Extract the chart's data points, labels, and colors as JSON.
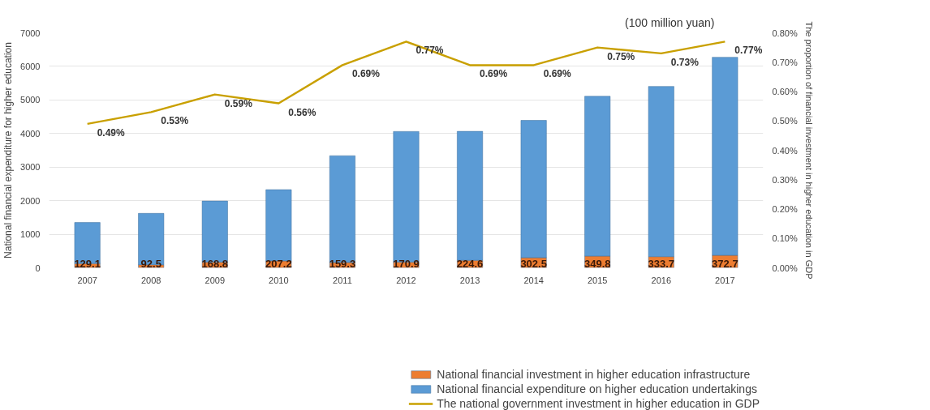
{
  "chart_data": {
    "type": "bar",
    "stacked": true,
    "categories": [
      "2007",
      "2008",
      "2009",
      "2010",
      "2011",
      "2012",
      "2013",
      "2014",
      "2015",
      "2016",
      "2017"
    ],
    "series": [
      {
        "name": "National financial investment in higher education infrastructure",
        "color": "#ed7d31",
        "values": [
          129.1,
          92.5,
          168.8,
          207.2,
          159.3,
          170.9,
          224.6,
          302.5,
          349.8,
          333.7,
          372.7
        ],
        "value_labels": [
          "129.1",
          "92.5",
          "168.8",
          "207.2",
          "159.3",
          "170.9",
          "224.6",
          "302.5",
          "349.8",
          "333.7",
          "372.7"
        ]
      },
      {
        "name": "National financial expenditure on higher education undertakings",
        "color": "#5b9bd5",
        "values": [
          1220,
          1530,
          1820,
          2120,
          3180,
          3890,
          3840,
          4090,
          4760,
          5070,
          5900
        ]
      },
      {
        "name": "The national government investment in higher education in GDP",
        "type": "line",
        "axis": "y2",
        "color": "#c9a000",
        "values": [
          0.49,
          0.53,
          0.59,
          0.56,
          0.69,
          0.77,
          0.69,
          0.69,
          0.75,
          0.73,
          0.77
        ],
        "value_labels": [
          "0.49%",
          "0.53%",
          "0.59%",
          "0.56%",
          "0.69%",
          "0.77%",
          "0.69%",
          "0.69%",
          "0.75%",
          "0.73%",
          "0.77%"
        ]
      }
    ],
    "ylabel": "National financial expenditure for higher education",
    "y2label": "The proportion of financial investment in higher education in GDP",
    "annotations": [
      "(100 million yuan)"
    ],
    "ylim": [
      0,
      7000
    ],
    "yticks": [
      0,
      1000,
      2000,
      3000,
      4000,
      5000,
      6000,
      7000
    ],
    "y2lim": [
      0,
      0.8
    ],
    "y2ticks": [
      {
        "value": 0,
        "label": "0.00%"
      },
      {
        "value": 0.1,
        "label": "0.10%"
      },
      {
        "value": 0.2,
        "label": "0.20%"
      },
      {
        "value": 0.3,
        "label": "0.30%"
      },
      {
        "value": 0.4,
        "label": "0.40%"
      },
      {
        "value": 0.5,
        "label": "0.50%"
      },
      {
        "value": 0.6,
        "label": "0.60%"
      },
      {
        "value": 0.7,
        "label": "0.70%"
      },
      {
        "value": 0.8,
        "label": "0.80%"
      }
    ],
    "grid": "y",
    "legend": "bottom"
  }
}
